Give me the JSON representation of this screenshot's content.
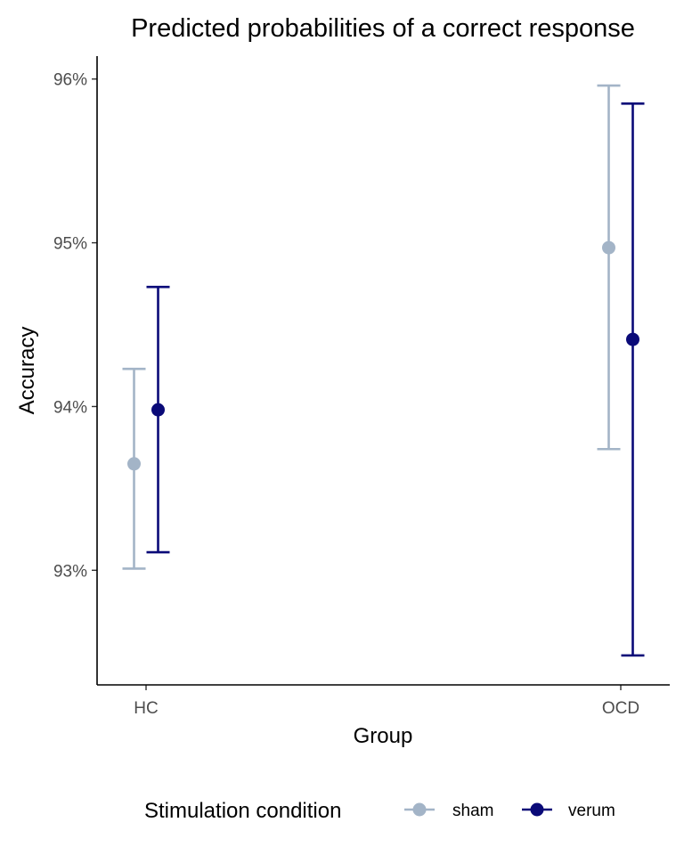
{
  "chart_data": {
    "type": "scatter",
    "title": "Predicted probabilities of a correct response",
    "xlabel": "Group",
    "ylabel": "Accuracy",
    "categories": [
      "HC",
      "OCD"
    ],
    "ylim": [
      0.923,
      0.9614
    ],
    "yticks": [
      0.93,
      0.94,
      0.95,
      0.96
    ],
    "ytick_labels": [
      "93%",
      "94%",
      "95%",
      "96%"
    ],
    "grid": false,
    "legend": {
      "title": "Stimulation condition",
      "position": "bottom"
    },
    "series": [
      {
        "name": "sham",
        "color": "#a3b4c7",
        "values": [
          0.9365,
          0.9497
        ],
        "lower": [
          0.9301,
          0.9374
        ],
        "upper": [
          0.9423,
          0.9596
        ]
      },
      {
        "name": "verum",
        "color": "#0a0a78",
        "values": [
          0.9398,
          0.9441
        ],
        "lower": [
          0.9311,
          0.9248
        ],
        "upper": [
          0.9473,
          0.9585
        ]
      }
    ]
  }
}
